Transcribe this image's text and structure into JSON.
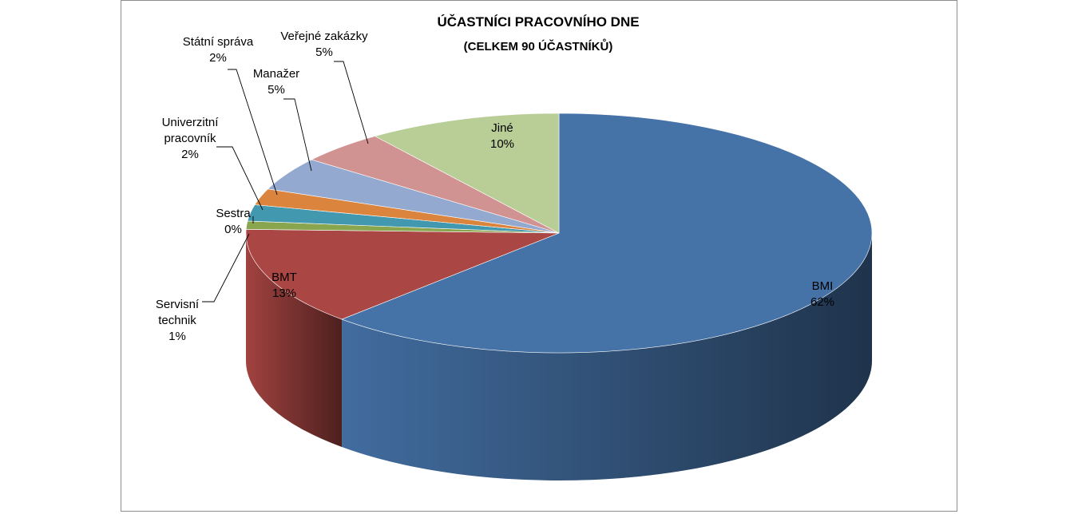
{
  "chart_data": {
    "type": "pie",
    "title": "ÚČASTNÍCI PRACOVNÍHO DNE",
    "subtitle": "(CELKEM 90 ÚČASTNÍKŮ)",
    "slices": [
      {
        "name": "BMI",
        "percent_label": "62%",
        "value": 62.2,
        "color": "#4572a7"
      },
      {
        "name": "BMT",
        "percent_label": "13%",
        "value": 13.3,
        "color": "#aa4643"
      },
      {
        "name": "Servisní technik",
        "name_lines": [
          "Servisní",
          "technik"
        ],
        "percent_label": "1%",
        "value": 1.1,
        "color": "#89a54e"
      },
      {
        "name": "Sestra",
        "percent_label": "0%",
        "value": 0.0,
        "color": "#71588f"
      },
      {
        "name": "Univerzitní pracovník",
        "name_lines": [
          "Univerzitní",
          "pracovník"
        ],
        "percent_label": "2%",
        "value": 2.2,
        "color": "#4198af"
      },
      {
        "name": "Státní správa",
        "percent_label": "2%",
        "value": 2.2,
        "color": "#db843d"
      },
      {
        "name": "Manažer",
        "percent_label": "5%",
        "value": 4.5,
        "color": "#93a9cf"
      },
      {
        "name": "Veřejné zakázky",
        "percent_label": "5%",
        "value": 4.5,
        "color": "#d19392"
      },
      {
        "name": "Jiné",
        "percent_label": "10%",
        "value": 10.0,
        "color": "#b9cd96"
      }
    ]
  }
}
